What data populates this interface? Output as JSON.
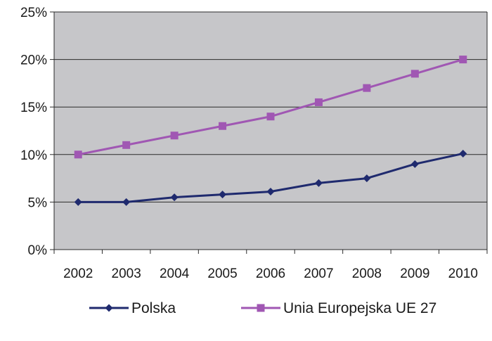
{
  "chart_data": {
    "type": "line",
    "title": "",
    "xlabel": "",
    "ylabel": "",
    "x": [
      "2002",
      "2003",
      "2004",
      "2005",
      "2006",
      "2007",
      "2008",
      "2009",
      "2010"
    ],
    "ylim": [
      0,
      25
    ],
    "yticks": [
      0,
      5,
      10,
      15,
      20,
      25
    ],
    "ytick_labels": [
      "0%",
      "5%",
      "10%",
      "15%",
      "20%",
      "25%"
    ],
    "grid": "horizontal",
    "plot_background": "#c6c6c9",
    "legend_position": "bottom",
    "series": [
      {
        "name": "Polska",
        "color": "#1f2a6e",
        "marker": "diamond",
        "values": [
          5.0,
          5.0,
          5.5,
          5.8,
          6.1,
          7.0,
          7.5,
          9.0,
          10.1
        ]
      },
      {
        "name": "Unia Europejska UE 27",
        "color": "#a057b3",
        "marker": "square",
        "values": [
          10.0,
          11.0,
          12.0,
          13.0,
          14.0,
          15.5,
          17.0,
          18.5,
          20.0
        ]
      }
    ]
  }
}
